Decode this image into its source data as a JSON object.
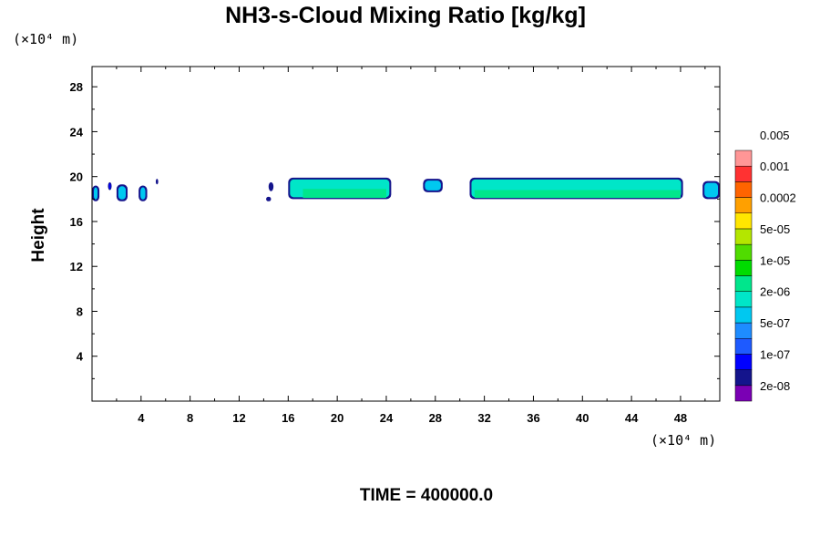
{
  "chart_data": {
    "type": "contour",
    "title": "NH3-s-Cloud Mixing Ratio [kg/kg]",
    "ylabel": "Height",
    "xlabel": "",
    "x_unit": "(×10⁴ m)",
    "y_unit": "(×10⁴ m)",
    "xlim": [
      0,
      51.2
    ],
    "ylim": [
      0,
      29.8
    ],
    "x_ticks": [
      4,
      8,
      12,
      16,
      20,
      24,
      28,
      32,
      36,
      40,
      44,
      48
    ],
    "y_ticks": [
      4,
      8,
      12,
      16,
      20,
      24,
      28
    ],
    "colorbar": {
      "colors": [
        "#7a00b4",
        "#14148c",
        "#0000ff",
        "#1e5aff",
        "#1e8cff",
        "#00c8f0",
        "#00e6c8",
        "#00e68c",
        "#00dc00",
        "#50dc00",
        "#b4e600",
        "#ffe600",
        "#ffa000",
        "#ff6400",
        "#ff3232",
        "#ff9696"
      ],
      "labels": [
        "2e-08",
        "1e-07",
        "5e-07",
        "2e-06",
        "1e-05",
        "5e-05",
        "0.0002",
        "0.001",
        "0.005"
      ]
    },
    "cloud_patches": [
      {
        "x": [
          0,
          0.6
        ],
        "y": [
          17.8,
          19.2
        ],
        "level": 5
      },
      {
        "x": [
          1.3,
          1.6
        ],
        "y": [
          18.8,
          19.5
        ],
        "level": 2
      },
      {
        "x": [
          2.0,
          2.9
        ],
        "y": [
          17.8,
          19.3
        ],
        "level": 5
      },
      {
        "x": [
          3.8,
          4.5
        ],
        "y": [
          17.8,
          19.2
        ],
        "level": 5
      },
      {
        "x": [
          5.2,
          5.4
        ],
        "y": [
          19.3,
          19.8
        ],
        "level": 1
      },
      {
        "x": [
          14.4,
          14.8
        ],
        "y": [
          18.7,
          19.5
        ],
        "level": 1
      },
      {
        "x": [
          14.2,
          14.6
        ],
        "y": [
          17.8,
          18.2
        ],
        "level": 1
      },
      {
        "x": [
          16.0,
          24.4
        ],
        "y": [
          18.0,
          19.9
        ],
        "level": 6
      },
      {
        "x": [
          27.0,
          28.6
        ],
        "y": [
          18.6,
          19.8
        ],
        "level": 5
      },
      {
        "x": [
          30.8,
          48.2
        ],
        "y": [
          18.0,
          19.9
        ],
        "level": 6
      },
      {
        "x": [
          49.8,
          51.2
        ],
        "y": [
          18.0,
          19.6
        ],
        "level": 5
      }
    ],
    "cloud_cores": [
      {
        "x": [
          17.2,
          24.0
        ],
        "y": [
          18.1,
          18.9
        ],
        "level": 7
      },
      {
        "x": [
          31.2,
          48.0
        ],
        "y": [
          18.1,
          18.8
        ],
        "level": 7
      }
    ]
  },
  "footer": {
    "time_label": "TIME = 400000.0"
  }
}
